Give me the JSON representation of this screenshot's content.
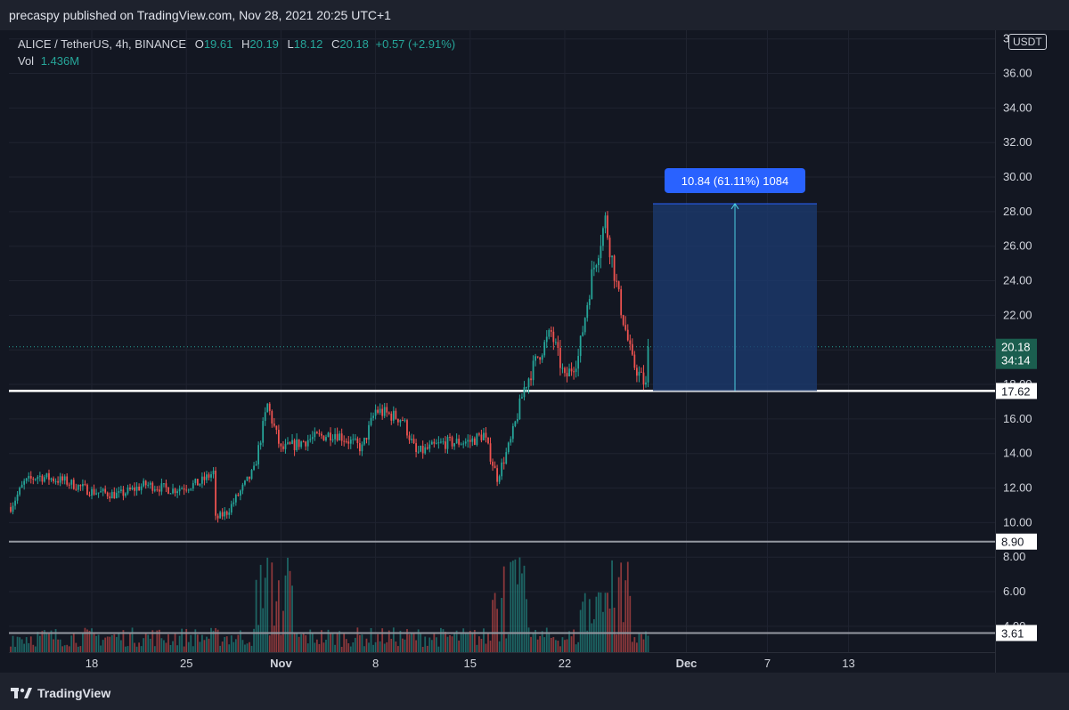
{
  "header": {
    "publisher_line": "precaspy published on TradingView.com, Nov 28, 2021 20:25 UTC+1"
  },
  "legend": {
    "symbol": "ALICE / TetherUS, 4h, BINANCE",
    "open_label": "O",
    "open": "19.61",
    "high_label": "H",
    "high": "20.19",
    "low_label": "L",
    "low": "18.12",
    "close_label": "C",
    "close": "20.18",
    "change": "+0.57 (+2.91%)",
    "vol_label": "Vol",
    "vol": "1.436M"
  },
  "currency_button": "USDT",
  "footer": {
    "brand": "TradingView"
  },
  "colors": {
    "up": "#26a69a",
    "down": "#ef5350",
    "bg": "#131722",
    "grid": "#1f2330",
    "measure_fill": "#1c3a6e",
    "measure_label": "#2962ff"
  },
  "chart_data": {
    "type": "candlestick",
    "title": "ALICE / TetherUS, 4h, BINANCE",
    "ylim": [
      2.5,
      38.5
    ],
    "y_ticks": [
      "4.00",
      "6.00",
      "8.00",
      "10.00",
      "12.00",
      "14.00",
      "16.00",
      "18.00",
      "20.00",
      "22.00",
      "24.00",
      "26.00",
      "28.00",
      "30.00",
      "32.00",
      "34.00",
      "36.00",
      "38.00"
    ],
    "y_tick_values": [
      4,
      6,
      8,
      10,
      12,
      14,
      16,
      18,
      20,
      22,
      24,
      26,
      28,
      30,
      32,
      34,
      36,
      38
    ],
    "x_axis": {
      "start_date": "2021-10-12",
      "start_hour": 0,
      "hours_per_bar": 4,
      "ticks": [
        {
          "label": "18",
          "date": "2021-10-18"
        },
        {
          "label": "25",
          "date": "2021-10-25"
        },
        {
          "label": "Nov",
          "date": "2021-11-01"
        },
        {
          "label": "8",
          "date": "2021-11-08"
        },
        {
          "label": "15",
          "date": "2021-11-15"
        },
        {
          "label": "22",
          "date": "2021-11-22"
        },
        {
          "label": "Dec",
          "date": "2021-12-01"
        },
        {
          "label": "7",
          "date": "2021-12-07"
        },
        {
          "label": "13",
          "date": "2021-12-13"
        }
      ]
    },
    "price_path": [
      {
        "date": "2021-10-12",
        "price": 10.9
      },
      {
        "date": "2021-10-13",
        "price": 12.3
      },
      {
        "date": "2021-10-14",
        "price": 12.7
      },
      {
        "date": "2021-10-16",
        "price": 12.4
      },
      {
        "date": "2021-10-18",
        "price": 11.8
      },
      {
        "date": "2021-10-20",
        "price": 11.6
      },
      {
        "date": "2021-10-22",
        "price": 12.2
      },
      {
        "date": "2021-10-24",
        "price": 11.9
      },
      {
        "date": "2021-10-26",
        "price": 12.3
      },
      {
        "date": "2021-10-27",
        "price": 12.9
      },
      {
        "date": "2021-10-27",
        "price": 10.2
      },
      {
        "date": "2021-10-28",
        "price": 10.6
      },
      {
        "date": "2021-10-30",
        "price": 13.0
      },
      {
        "date": "2021-10-31",
        "price": 16.8
      },
      {
        "date": "2021-11-01",
        "price": 14.2
      },
      {
        "date": "2021-11-03",
        "price": 14.8
      },
      {
        "date": "2021-11-05",
        "price": 15.2
      },
      {
        "date": "2021-11-07",
        "price": 14.3
      },
      {
        "date": "2021-11-08",
        "price": 16.5
      },
      {
        "date": "2021-11-10",
        "price": 16.0
      },
      {
        "date": "2021-11-11",
        "price": 14.0
      },
      {
        "date": "2021-11-13",
        "price": 14.6
      },
      {
        "date": "2021-11-15",
        "price": 14.7
      },
      {
        "date": "2021-11-16",
        "price": 15.1
      },
      {
        "date": "2021-11-17",
        "price": 12.6
      },
      {
        "date": "2021-11-18",
        "price": 14.7
      },
      {
        "date": "2021-11-19",
        "price": 17.8
      },
      {
        "date": "2021-11-20",
        "price": 19.6
      },
      {
        "date": "2021-11-21",
        "price": 21.0
      },
      {
        "date": "2021-11-22",
        "price": 18.3
      },
      {
        "date": "2021-11-23",
        "price": 19.6
      },
      {
        "date": "2021-11-24",
        "price": 24.3
      },
      {
        "date": "2021-11-25",
        "price": 27.5
      },
      {
        "date": "2021-11-26",
        "price": 23.0
      },
      {
        "date": "2021-11-27",
        "price": 19.3
      },
      {
        "date": "2021-11-28",
        "price": 17.9
      },
      {
        "date": "2021-11-28",
        "price": 20.18
      }
    ],
    "volume_bars_hint": "spikes near Oct 31, Nov 18 and Nov 25",
    "horizontal_levels": [
      {
        "price": 17.62,
        "label": "17.62",
        "color": "#ffffff"
      },
      {
        "price": 8.9,
        "label": "8.90",
        "color": "#9598a1"
      },
      {
        "price": 3.61,
        "label": "3.61",
        "color": "#9598a1"
      }
    ],
    "last_price": {
      "label": "20.18",
      "countdown": "34:14"
    },
    "measure": {
      "label": "10.84 (61.11%) 1084",
      "from_price": 17.62,
      "to_price": 28.46,
      "start_date": "2021-11-28",
      "end_date": "2021-12-10"
    }
  }
}
